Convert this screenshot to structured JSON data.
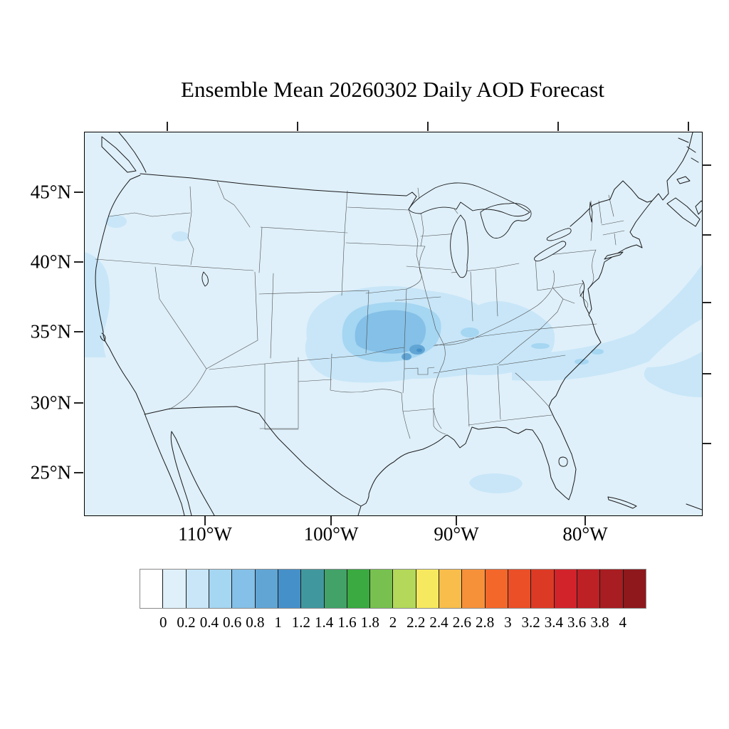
{
  "title": "Ensemble Mean 20260302 Daily AOD Forecast",
  "axes": {
    "y_tick_labels": [
      "45°N",
      "40°N",
      "35°N",
      "30°N",
      "25°N"
    ],
    "x_tick_labels": [
      "110°W",
      "100°W",
      "90°W",
      "80°W"
    ]
  },
  "colorbar": {
    "tick_labels": [
      "0",
      "0.2",
      "0.4",
      "0.6",
      "0.8",
      "1",
      "1.2",
      "1.4",
      "1.6",
      "1.8",
      "2",
      "2.2",
      "2.4",
      "2.6",
      "2.8",
      "3",
      "3.2",
      "3.4",
      "3.6",
      "3.8",
      "4"
    ],
    "colors": [
      "#FFFFFF",
      "#DFF0FA",
      "#C8E6F8",
      "#A5D6F2",
      "#84C0E7",
      "#61A5D5",
      "#4690C9",
      "#40989E",
      "#42A268",
      "#3AAA41",
      "#78C150",
      "#B3D85A",
      "#F7E95F",
      "#F8BD4B",
      "#F6913A",
      "#F3672B",
      "#EA4F28",
      "#DD3A25",
      "#D2232B",
      "#BD2025",
      "#A71D21",
      "#8E181C"
    ]
  },
  "map": {
    "background_color": "#DFF0FA",
    "coast_color": "#1a1a1a",
    "state_line_color": "#4d4d4d"
  },
  "chart_data": {
    "type": "filled_contour_map",
    "title": "Ensemble Mean 20260302 Daily AOD Forecast",
    "variable": "Daily AOD (Aerosol Optical Depth), ensemble mean",
    "region": "Contiguous United States with surrounding ocean, southern Canada and northern Mexico",
    "x_axis": {
      "label": "longitude",
      "ticks": [
        "110°W",
        "100°W",
        "90°W",
        "80°W"
      ]
    },
    "y_axis": {
      "label": "latitude",
      "ticks": [
        "45°N",
        "40°N",
        "35°N",
        "30°N",
        "25°N"
      ]
    },
    "contour_levels": [
      0,
      0.2,
      0.4,
      0.6,
      0.8,
      1,
      1.2,
      1.4,
      1.6,
      1.8,
      2,
      2.2,
      2.4,
      2.6,
      2.8,
      3,
      3.2,
      3.4,
      3.6,
      3.8,
      4
    ],
    "legend_position": "horizontal label bar below map",
    "features": [
      {
        "description": "Background field over most of the domain",
        "value_range": [
          0,
          0.2
        ]
      },
      {
        "description": "Large plume over southern Great Plains / mid-Mississippi valley (Kansas, Oklahoma, Missouri, Arkansas), outer contour 0.2-0.4 extending into Illinois, Indiana, Kentucky and Tennessee",
        "value_range": [
          0.2,
          0.4
        ]
      },
      {
        "description": "Inner plume over SE Kansas / NE Oklahoma / SW Missouri / N Arkansas",
        "value_range": [
          0.4,
          0.8
        ]
      },
      {
        "description": "Plume maximum patches near the Missouri-Arkansas border",
        "value_range": [
          0.8,
          1.2
        ]
      },
      {
        "description": "Band from Tennessee/Carolinas sweeping northeast offshore over the western Atlantic",
        "value_range": [
          0.2,
          0.6
        ]
      },
      {
        "description": "Coastal band along the northern California / Oregon Pacific coast",
        "value_range": [
          0.2,
          0.4
        ]
      },
      {
        "description": "Small patch over the eastern Gulf of Mexico",
        "value_range": [
          0.2,
          0.4
        ]
      }
    ]
  }
}
